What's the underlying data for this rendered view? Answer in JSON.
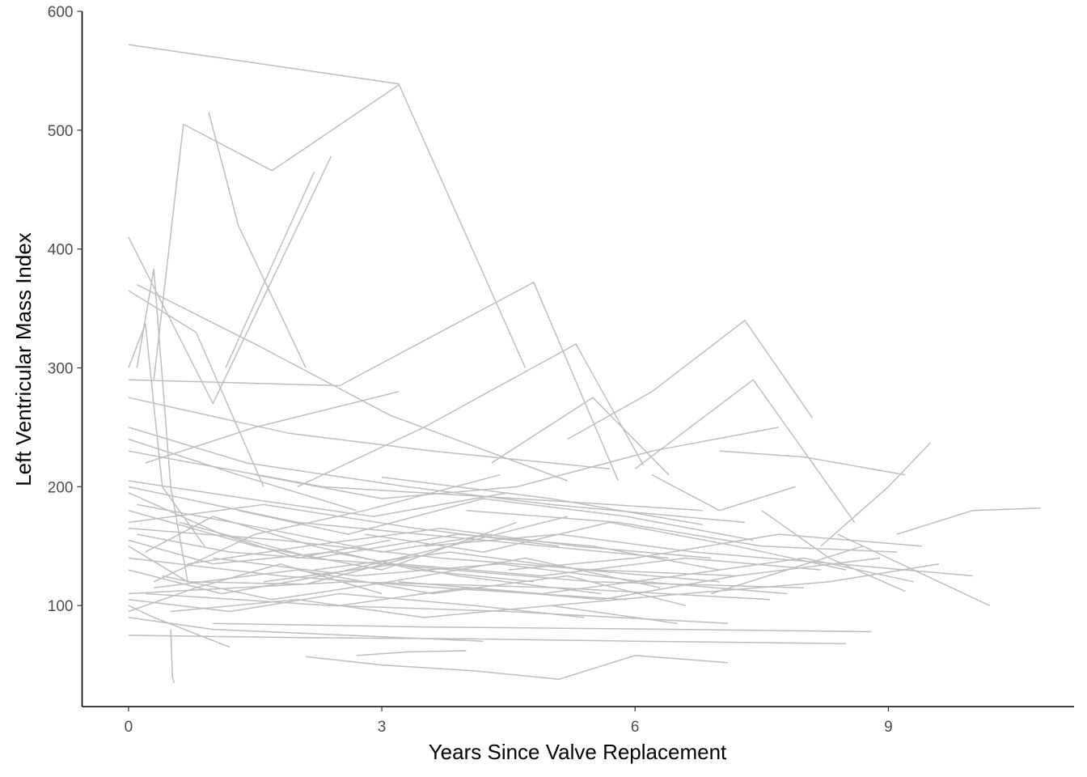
{
  "chart_data": {
    "type": "line",
    "title": "",
    "xlabel": "Years Since Valve Replacement",
    "ylabel": "Left Ventricular Mass Index",
    "xlim": [
      -0.55,
      11.2
    ],
    "ylim": [
      15,
      600
    ],
    "xticks": [
      0,
      3,
      6,
      9
    ],
    "yticks": [
      100,
      200,
      300,
      400,
      500,
      600
    ],
    "grid": false,
    "legend": "none",
    "line_color": "#bebebe",
    "series": [
      {
        "x": [
          0.0,
          3.2,
          4.7
        ],
        "y": [
          572,
          539,
          300
        ]
      },
      {
        "x": [
          0.3,
          0.65,
          1.7,
          3.2
        ],
        "y": [
          290,
          505,
          466,
          538
        ]
      },
      {
        "x": [
          0.95,
          1.3,
          2.1
        ],
        "y": [
          515,
          420,
          300
        ]
      },
      {
        "x": [
          0.0,
          0.5,
          1.0,
          2.4
        ],
        "y": [
          410,
          340,
          270,
          478
        ]
      },
      {
        "x": [
          1.15,
          2.2
        ],
        "y": [
          300,
          465
        ]
      },
      {
        "x": [
          0.1,
          0.3,
          0.5,
          0.7
        ],
        "y": [
          300,
          383,
          200,
          120
        ]
      },
      {
        "x": [
          0.0,
          0.8,
          1.6
        ],
        "y": [
          365,
          330,
          200
        ]
      },
      {
        "x": [
          0.0,
          0.2,
          0.4,
          0.9
        ],
        "y": [
          300,
          337,
          200,
          150
        ]
      },
      {
        "x": [
          0.1,
          1.5,
          3.1,
          5.2
        ],
        "y": [
          370,
          320,
          260,
          205
        ]
      },
      {
        "x": [
          0.0,
          2.5,
          4.8,
          5.8
        ],
        "y": [
          290,
          285,
          372,
          205
        ]
      },
      {
        "x": [
          2.0,
          3.5,
          5.3,
          6.1
        ],
        "y": [
          200,
          250,
          320,
          218
        ]
      },
      {
        "x": [
          4.3,
          5.5,
          6.4
        ],
        "y": [
          220,
          275,
          210
        ]
      },
      {
        "x": [
          5.2,
          6.2,
          7.3,
          8.1
        ],
        "y": [
          240,
          280,
          340,
          258
        ]
      },
      {
        "x": [
          6.0,
          7.4,
          8.6
        ],
        "y": [
          215,
          290,
          170
        ]
      },
      {
        "x": [
          7.0,
          8.0,
          9.2
        ],
        "y": [
          230,
          225,
          210
        ]
      },
      {
        "x": [
          8.2,
          9.0,
          9.5
        ],
        "y": [
          150,
          200,
          237
        ]
      },
      {
        "x": [
          9.1,
          10.0,
          10.8
        ],
        "y": [
          160,
          180,
          182
        ]
      },
      {
        "x": [
          8.4,
          9.0,
          10.2
        ],
        "y": [
          160,
          140,
          100
        ]
      },
      {
        "x": [
          7.5,
          8.3,
          9.2
        ],
        "y": [
          180,
          140,
          112
        ]
      },
      {
        "x": [
          6.9,
          7.8,
          8.7
        ],
        "y": [
          110,
          130,
          150
        ]
      },
      {
        "x": [
          6.2,
          7.0,
          7.9
        ],
        "y": [
          210,
          180,
          200
        ]
      },
      {
        "x": [
          3.0,
          5.0,
          6.8
        ],
        "y": [
          208,
          190,
          168
        ]
      },
      {
        "x": [
          0.0,
          1.5,
          3.0,
          4.6
        ],
        "y": [
          180,
          150,
          130,
          170
        ]
      },
      {
        "x": [
          0.0,
          0.7,
          2.1,
          3.3
        ],
        "y": [
          150,
          120,
          118,
          140
        ]
      },
      {
        "x": [
          0.5,
          0.52,
          0.54
        ],
        "y": [
          80,
          40,
          35
        ]
      },
      {
        "x": [
          0.0,
          0.3,
          1.2
        ],
        "y": [
          100,
          90,
          65
        ]
      },
      {
        "x": [
          0.0,
          1.0,
          2.6,
          4.2
        ],
        "y": [
          90,
          80,
          75,
          70
        ]
      },
      {
        "x": [
          2.1,
          3.0,
          4.1,
          5.1,
          6.0,
          7.1
        ],
        "y": [
          57,
          50,
          45,
          38,
          58,
          52
        ]
      },
      {
        "x": [
          2.7,
          3.3,
          4.0
        ],
        "y": [
          58,
          61,
          62
        ]
      },
      {
        "x": [
          0.0,
          2.0,
          4.0,
          6.0,
          8.5
        ],
        "y": [
          75,
          73,
          72,
          70,
          68
        ]
      },
      {
        "x": [
          1.0,
          3.5,
          6.5,
          8.8
        ],
        "y": [
          85,
          82,
          80,
          78
        ]
      },
      {
        "x": [
          0.2,
          2.4,
          4.5,
          7.1
        ],
        "y": [
          110,
          100,
          95,
          85
        ]
      },
      {
        "x": [
          0.0,
          1.8,
          3.7,
          5.9
        ],
        "y": [
          140,
          125,
          115,
          105
        ]
      },
      {
        "x": [
          0.1,
          1.2,
          3.0,
          5.5,
          8.0
        ],
        "y": [
          160,
          145,
          135,
          120,
          115
        ]
      },
      {
        "x": [
          0.0,
          2.0,
          4.2,
          6.4
        ],
        "y": [
          200,
          170,
          155,
          140
        ]
      },
      {
        "x": [
          0.3,
          1.5,
          2.8,
          4.4
        ],
        "y": [
          120,
          160,
          180,
          210
        ]
      },
      {
        "x": [
          0.0,
          1.1,
          2.3,
          3.8,
          5.2
        ],
        "y": [
          130,
          110,
          125,
          150,
          175
        ]
      },
      {
        "x": [
          0.6,
          2.2,
          3.9,
          5.5,
          7.0
        ],
        "y": [
          170,
          140,
          160,
          150,
          130
        ]
      },
      {
        "x": [
          0.0,
          1.4,
          3.3,
          5.0,
          7.3
        ],
        "y": [
          250,
          220,
          200,
          185,
          170
        ]
      },
      {
        "x": [
          0.0,
          1.9,
          3.6,
          5.7
        ],
        "y": [
          275,
          245,
          230,
          215
        ]
      },
      {
        "x": [
          0.0,
          1.3,
          2.7
        ],
        "y": [
          240,
          210,
          180
        ]
      },
      {
        "x": [
          1.6,
          3.2,
          4.9,
          6.6,
          8.2
        ],
        "y": [
          120,
          135,
          125,
          140,
          130
        ]
      },
      {
        "x": [
          2.5,
          4.0,
          5.6,
          7.2,
          8.9
        ],
        "y": [
          100,
          115,
          105,
          125,
          140
        ]
      },
      {
        "x": [
          3.5,
          5.1,
          6.7,
          8.4,
          10.0
        ],
        "y": [
          150,
          160,
          145,
          135,
          125
        ]
      },
      {
        "x": [
          4.0,
          5.8,
          7.5,
          9.1
        ],
        "y": [
          180,
          170,
          150,
          145
        ]
      },
      {
        "x": [
          4.5,
          6.0,
          7.7,
          9.4
        ],
        "y": [
          130,
          140,
          160,
          150
        ]
      },
      {
        "x": [
          5.0,
          6.6,
          8.3,
          9.6
        ],
        "y": [
          100,
          110,
          120,
          135
        ]
      },
      {
        "x": [
          0.0,
          1.2,
          2.5,
          4.1,
          5.4
        ],
        "y": [
          105,
          95,
          110,
          100,
          90
        ]
      },
      {
        "x": [
          0.1,
          1.6,
          3.0,
          4.3
        ],
        "y": [
          185,
          165,
          145,
          160
        ]
      },
      {
        "x": [
          0.2,
          1.0,
          2.2,
          3.4,
          4.8
        ],
        "y": [
          145,
          175,
          150,
          130,
          120
        ]
      },
      {
        "x": [
          0.0,
          0.8,
          1.8,
          3.0
        ],
        "y": [
          95,
          115,
          135,
          110
        ]
      },
      {
        "x": [
          0.4,
          1.7,
          3.1,
          4.7,
          6.3
        ],
        "y": [
          125,
          105,
          120,
          140,
          115
        ]
      },
      {
        "x": [
          0.0,
          1.4,
          2.9,
          4.5
        ],
        "y": [
          205,
          190,
          175,
          195
        ]
      },
      {
        "x": [
          0.7,
          2.1,
          3.7,
          5.3,
          6.9
        ],
        "y": [
          135,
          150,
          165,
          150,
          140
        ]
      },
      {
        "x": [
          0.0,
          1.0,
          2.4,
          3.9,
          5.6
        ],
        "y": [
          155,
          135,
          145,
          125,
          110
        ]
      },
      {
        "x": [
          1.3,
          2.6,
          4.2,
          5.9,
          7.4
        ],
        "y": [
          180,
          160,
          190,
          175,
          155
        ]
      },
      {
        "x": [
          2.2,
          3.8,
          5.4,
          7.0
        ],
        "y": [
          130,
          145,
          130,
          120
        ]
      },
      {
        "x": [
          0.0,
          2.3,
          4.6,
          6.8
        ],
        "y": [
          230,
          200,
          190,
          180
        ]
      },
      {
        "x": [
          0.5,
          2.0,
          3.5,
          5.0,
          6.5
        ],
        "y": [
          95,
          105,
          90,
          100,
          85
        ]
      },
      {
        "x": [
          1.0,
          2.7,
          4.4,
          6.1,
          7.8
        ],
        "y": [
          140,
          125,
          135,
          120,
          110
        ]
      },
      {
        "x": [
          0.0,
          1.6,
          3.4,
          5.1
        ],
        "y": [
          170,
          185,
          165,
          150
        ]
      },
      {
        "x": [
          0.3,
          2.0,
          3.6,
          5.2,
          6.6
        ],
        "y": [
          115,
          130,
          110,
          125,
          100
        ]
      },
      {
        "x": [
          0.0,
          1.1,
          2.0,
          3.1
        ],
        "y": [
          195,
          160,
          140,
          155
        ]
      },
      {
        "x": [
          2.8,
          4.2,
          5.7,
          7.2,
          8.5
        ],
        "y": [
          160,
          145,
          170,
          150,
          130
        ]
      },
      {
        "x": [
          3.2,
          4.9,
          6.5,
          8.0,
          9.3
        ],
        "y": [
          120,
          110,
          125,
          140,
          120
        ]
      },
      {
        "x": [
          0.0,
          2.6,
          5.1,
          7.6
        ],
        "y": [
          110,
          120,
          115,
          105
        ]
      },
      {
        "x": [
          0.2,
          1.5,
          3.2
        ],
        "y": [
          220,
          250,
          280
        ]
      },
      {
        "x": [
          1.5,
          3.0,
          4.6,
          6.2,
          7.7
        ],
        "y": [
          210,
          190,
          200,
          230,
          250
        ]
      },
      {
        "x": [
          0.0,
          1.8,
          3.7,
          5.5,
          7.2
        ],
        "y": [
          165,
          155,
          140,
          130,
          125
        ]
      }
    ]
  }
}
